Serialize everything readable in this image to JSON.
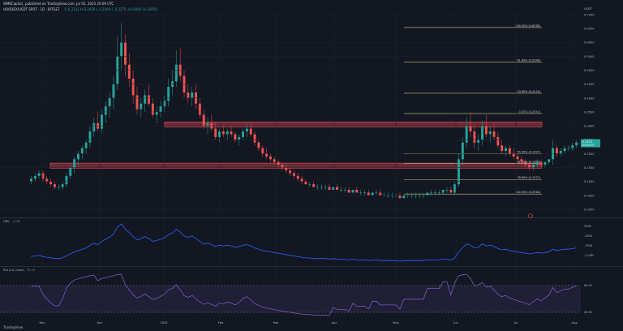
{
  "header": {
    "line1": "WMKCapital_ published on TradingView.com, Jul 02, 2025 20:09 UTC",
    "symbol": "HOODEX/USDT SPOT · 1D · BITGET",
    "ohlc": "O 0.2311 H 0.2426 L 0.2264 C 0.2375 +0.0066 (+2.85%)"
  },
  "price_axis": {
    "unit": "USDT",
    "ticks": [
      "0.7000",
      "0.6500",
      "0.6000",
      "0.5500",
      "0.5000",
      "0.4500",
      "0.4000",
      "0.3500",
      "0.3000",
      "0.2500",
      "0.2000",
      "0.1500",
      "0.1000",
      "0.0500",
      "0.0000"
    ]
  },
  "current_price": {
    "value": "0.2375",
    "countdown": "03:50:50"
  },
  "time_axis": [
    "Nov",
    "Dec",
    "2025",
    "Feb",
    "Mar",
    "Apr",
    "May",
    "Jun",
    "Jul",
    "Aug"
  ],
  "fib_levels": [
    {
      "label": "-100.00% (0.6538)",
      "price": 0.6538
    },
    {
      "label": "-61.80% (0.5296)",
      "price": 0.5296
    },
    {
      "label": "-23.60% (0.4174)",
      "price": 0.4174
    },
    {
      "label": "0.00% (0.3444)",
      "price": 0.3444
    },
    {
      "label": "50.00% (0.1997)",
      "price": 0.1997
    },
    {
      "label": "61.80% (0.1653)",
      "price": 0.1653
    },
    {
      "label": "78.60% (0.1072)",
      "price": 0.1072
    },
    {
      "label": "100.00% (0.0548)",
      "price": 0.0548
    }
  ],
  "zones": [
    {
      "name": "resistance",
      "from": 0.296,
      "to": 0.314
    },
    {
      "name": "support",
      "from": 0.148,
      "to": 0.166
    }
  ],
  "obv": {
    "label": "OBV",
    "value": "-4.0M",
    "ticks": [
      "250K",
      "-250K",
      "-750K",
      "-1.25M"
    ]
  },
  "rsi": {
    "label": "RSI (14, close)",
    "value": "55.29",
    "ticks": [
      "60.00",
      "40.00"
    ]
  },
  "colors": {
    "up": "#26a69a",
    "down": "#ef5350",
    "zone": "#b2384a",
    "fib": "#c9c17a",
    "obv": "#2962ff",
    "rsi": "#7e57c2"
  },
  "brand": "TradingView",
  "chart_data": {
    "type": "candlestick",
    "x_range": [
      "2024-10-16",
      "2025-08-10"
    ],
    "ylim": [
      0.0,
      0.7
    ],
    "candles": [
      [
        0.1,
        0.12,
        0.09,
        0.11
      ],
      [
        0.11,
        0.13,
        0.1,
        0.12
      ],
      [
        0.12,
        0.14,
        0.11,
        0.13
      ],
      [
        0.13,
        0.14,
        0.1,
        0.11
      ],
      [
        0.11,
        0.12,
        0.09,
        0.1
      ],
      [
        0.1,
        0.11,
        0.08,
        0.09
      ],
      [
        0.09,
        0.1,
        0.07,
        0.08
      ],
      [
        0.08,
        0.09,
        0.07,
        0.08
      ],
      [
        0.08,
        0.1,
        0.07,
        0.09
      ],
      [
        0.09,
        0.13,
        0.08,
        0.12
      ],
      [
        0.12,
        0.16,
        0.11,
        0.15
      ],
      [
        0.15,
        0.19,
        0.13,
        0.18
      ],
      [
        0.18,
        0.21,
        0.16,
        0.2
      ],
      [
        0.2,
        0.23,
        0.18,
        0.22
      ],
      [
        0.22,
        0.25,
        0.2,
        0.24
      ],
      [
        0.24,
        0.3,
        0.22,
        0.28
      ],
      [
        0.28,
        0.33,
        0.26,
        0.31
      ],
      [
        0.31,
        0.35,
        0.28,
        0.29
      ],
      [
        0.29,
        0.36,
        0.27,
        0.34
      ],
      [
        0.34,
        0.39,
        0.31,
        0.37
      ],
      [
        0.37,
        0.42,
        0.33,
        0.4
      ],
      [
        0.4,
        0.48,
        0.36,
        0.45
      ],
      [
        0.45,
        0.62,
        0.43,
        0.55
      ],
      [
        0.55,
        0.67,
        0.5,
        0.6
      ],
      [
        0.6,
        0.63,
        0.48,
        0.52
      ],
      [
        0.52,
        0.56,
        0.44,
        0.47
      ],
      [
        0.47,
        0.5,
        0.38,
        0.41
      ],
      [
        0.41,
        0.44,
        0.34,
        0.36
      ],
      [
        0.36,
        0.4,
        0.33,
        0.38
      ],
      [
        0.38,
        0.43,
        0.35,
        0.41
      ],
      [
        0.41,
        0.45,
        0.37,
        0.38
      ],
      [
        0.38,
        0.4,
        0.33,
        0.34
      ],
      [
        0.34,
        0.37,
        0.31,
        0.35
      ],
      [
        0.35,
        0.39,
        0.33,
        0.37
      ],
      [
        0.37,
        0.41,
        0.35,
        0.39
      ],
      [
        0.39,
        0.47,
        0.37,
        0.44
      ],
      [
        0.44,
        0.5,
        0.41,
        0.46
      ],
      [
        0.46,
        0.57,
        0.44,
        0.52
      ],
      [
        0.52,
        0.58,
        0.46,
        0.48
      ],
      [
        0.48,
        0.5,
        0.4,
        0.42
      ],
      [
        0.42,
        0.45,
        0.38,
        0.4
      ],
      [
        0.4,
        0.44,
        0.37,
        0.42
      ],
      [
        0.42,
        0.45,
        0.36,
        0.38
      ],
      [
        0.38,
        0.4,
        0.33,
        0.34
      ],
      [
        0.34,
        0.36,
        0.29,
        0.3
      ],
      [
        0.3,
        0.33,
        0.27,
        0.31
      ],
      [
        0.31,
        0.34,
        0.28,
        0.29
      ],
      [
        0.29,
        0.31,
        0.25,
        0.26
      ],
      [
        0.26,
        0.29,
        0.24,
        0.28
      ],
      [
        0.28,
        0.3,
        0.26,
        0.27
      ],
      [
        0.27,
        0.29,
        0.25,
        0.28
      ],
      [
        0.28,
        0.3,
        0.26,
        0.27
      ],
      [
        0.27,
        0.28,
        0.24,
        0.25
      ],
      [
        0.25,
        0.27,
        0.23,
        0.26
      ],
      [
        0.26,
        0.29,
        0.25,
        0.28
      ],
      [
        0.28,
        0.31,
        0.26,
        0.29
      ],
      [
        0.29,
        0.31,
        0.26,
        0.27
      ],
      [
        0.27,
        0.28,
        0.23,
        0.24
      ],
      [
        0.24,
        0.25,
        0.21,
        0.22
      ],
      [
        0.22,
        0.23,
        0.19,
        0.2
      ],
      [
        0.2,
        0.22,
        0.18,
        0.19
      ],
      [
        0.19,
        0.2,
        0.17,
        0.18
      ],
      [
        0.18,
        0.19,
        0.16,
        0.17
      ],
      [
        0.17,
        0.18,
        0.15,
        0.16
      ],
      [
        0.16,
        0.17,
        0.14,
        0.15
      ],
      [
        0.15,
        0.16,
        0.13,
        0.14
      ],
      [
        0.14,
        0.15,
        0.12,
        0.13
      ],
      [
        0.13,
        0.14,
        0.11,
        0.12
      ],
      [
        0.12,
        0.13,
        0.1,
        0.11
      ],
      [
        0.11,
        0.12,
        0.09,
        0.1
      ],
      [
        0.1,
        0.11,
        0.09,
        0.09
      ],
      [
        0.09,
        0.1,
        0.08,
        0.09
      ],
      [
        0.09,
        0.1,
        0.08,
        0.08
      ],
      [
        0.08,
        0.09,
        0.07,
        0.08
      ],
      [
        0.08,
        0.09,
        0.07,
        0.08
      ],
      [
        0.08,
        0.09,
        0.07,
        0.08
      ],
      [
        0.08,
        0.09,
        0.07,
        0.07
      ],
      [
        0.07,
        0.08,
        0.07,
        0.08
      ],
      [
        0.08,
        0.09,
        0.07,
        0.07
      ],
      [
        0.07,
        0.08,
        0.06,
        0.07
      ],
      [
        0.07,
        0.08,
        0.06,
        0.07
      ],
      [
        0.07,
        0.08,
        0.06,
        0.06
      ],
      [
        0.06,
        0.07,
        0.06,
        0.07
      ],
      [
        0.07,
        0.08,
        0.06,
        0.06
      ],
      [
        0.06,
        0.07,
        0.05,
        0.06
      ],
      [
        0.06,
        0.07,
        0.05,
        0.06
      ],
      [
        0.06,
        0.07,
        0.05,
        0.05
      ],
      [
        0.05,
        0.06,
        0.05,
        0.06
      ],
      [
        0.06,
        0.07,
        0.05,
        0.06
      ],
      [
        0.06,
        0.07,
        0.05,
        0.05
      ],
      [
        0.05,
        0.06,
        0.05,
        0.05
      ],
      [
        0.05,
        0.06,
        0.04,
        0.05
      ],
      [
        0.05,
        0.06,
        0.04,
        0.05
      ],
      [
        0.05,
        0.06,
        0.04,
        0.05
      ],
      [
        0.05,
        0.06,
        0.04,
        0.04
      ],
      [
        0.04,
        0.05,
        0.04,
        0.05
      ],
      [
        0.05,
        0.06,
        0.04,
        0.05
      ],
      [
        0.05,
        0.06,
        0.04,
        0.05
      ],
      [
        0.05,
        0.06,
        0.04,
        0.05
      ],
      [
        0.05,
        0.06,
        0.04,
        0.05
      ],
      [
        0.05,
        0.06,
        0.04,
        0.05
      ],
      [
        0.05,
        0.06,
        0.05,
        0.06
      ],
      [
        0.06,
        0.07,
        0.05,
        0.06
      ],
      [
        0.06,
        0.07,
        0.05,
        0.06
      ],
      [
        0.06,
        0.07,
        0.05,
        0.06
      ],
      [
        0.06,
        0.07,
        0.05,
        0.07
      ],
      [
        0.07,
        0.08,
        0.06,
        0.07
      ],
      [
        0.07,
        0.08,
        0.06,
        0.06
      ],
      [
        0.06,
        0.1,
        0.05,
        0.09
      ],
      [
        0.09,
        0.2,
        0.08,
        0.18
      ],
      [
        0.18,
        0.26,
        0.16,
        0.24
      ],
      [
        0.24,
        0.33,
        0.22,
        0.3
      ],
      [
        0.3,
        0.35,
        0.26,
        0.28
      ],
      [
        0.28,
        0.3,
        0.22,
        0.24
      ],
      [
        0.24,
        0.27,
        0.21,
        0.25
      ],
      [
        0.25,
        0.32,
        0.23,
        0.3
      ],
      [
        0.3,
        0.34,
        0.26,
        0.27
      ],
      [
        0.27,
        0.3,
        0.24,
        0.28
      ],
      [
        0.28,
        0.31,
        0.25,
        0.26
      ],
      [
        0.26,
        0.28,
        0.22,
        0.23
      ],
      [
        0.23,
        0.25,
        0.2,
        0.21
      ],
      [
        0.21,
        0.23,
        0.19,
        0.22
      ],
      [
        0.22,
        0.23,
        0.19,
        0.2
      ],
      [
        0.2,
        0.22,
        0.18,
        0.19
      ],
      [
        0.19,
        0.2,
        0.17,
        0.18
      ],
      [
        0.18,
        0.19,
        0.16,
        0.17
      ],
      [
        0.17,
        0.18,
        0.15,
        0.16
      ],
      [
        0.16,
        0.17,
        0.14,
        0.15
      ],
      [
        0.15,
        0.17,
        0.14,
        0.16
      ],
      [
        0.16,
        0.18,
        0.15,
        0.17
      ],
      [
        0.17,
        0.18,
        0.15,
        0.16
      ],
      [
        0.16,
        0.17,
        0.15,
        0.17
      ],
      [
        0.17,
        0.18,
        0.16,
        0.18
      ],
      [
        0.18,
        0.25,
        0.16,
        0.22
      ],
      [
        0.22,
        0.23,
        0.19,
        0.2
      ],
      [
        0.2,
        0.22,
        0.19,
        0.21
      ],
      [
        0.21,
        0.23,
        0.2,
        0.22
      ],
      [
        0.22,
        0.23,
        0.21,
        0.22
      ],
      [
        0.22,
        0.24,
        0.21,
        0.23
      ],
      [
        0.23,
        0.25,
        0.22,
        0.24
      ]
    ]
  }
}
